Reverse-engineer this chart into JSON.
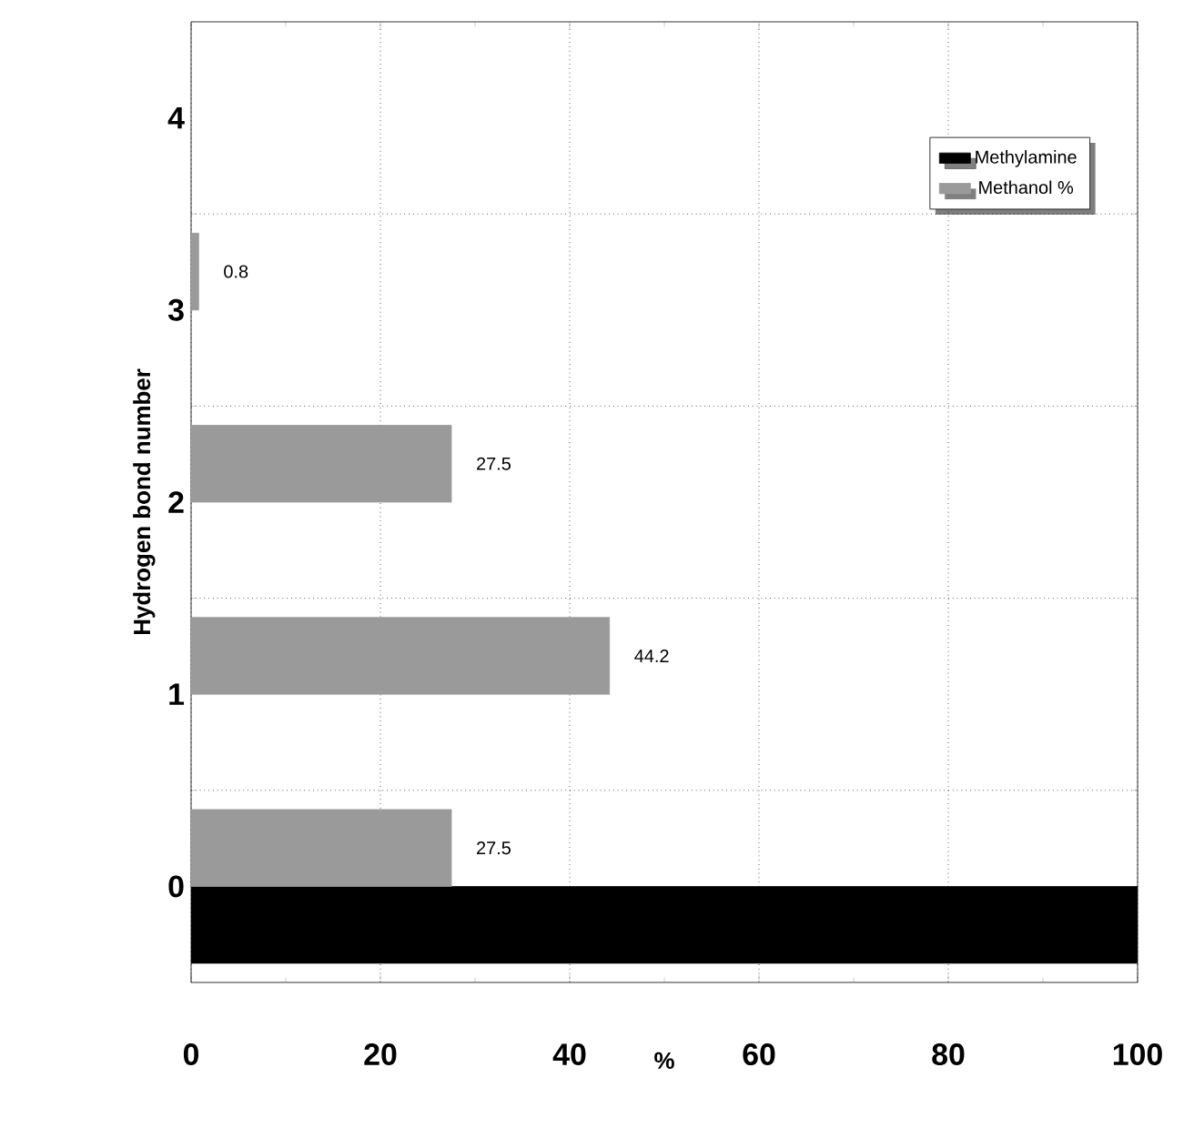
{
  "chart_data": {
    "type": "bar",
    "orientation": "horizontal",
    "ylabel": "Hydrogen bond number",
    "xlabel": "%",
    "categories": [
      "4",
      "3",
      "2",
      "1",
      "0"
    ],
    "series": [
      {
        "name": "Methylamine",
        "color": "#000000",
        "values": [
          null,
          null,
          null,
          null,
          100
        ]
      },
      {
        "name": "Methanol %",
        "color": "#9a9a9a",
        "values": [
          null,
          0.8,
          27.5,
          44.2,
          27.5
        ],
        "value_labels": [
          null,
          "0.8",
          "27.5",
          "44.2",
          "27.5"
        ]
      }
    ],
    "xlim": [
      0,
      100
    ],
    "xticks": [
      0,
      20,
      40,
      60,
      80,
      100
    ],
    "grid": true,
    "legend": "top right"
  }
}
